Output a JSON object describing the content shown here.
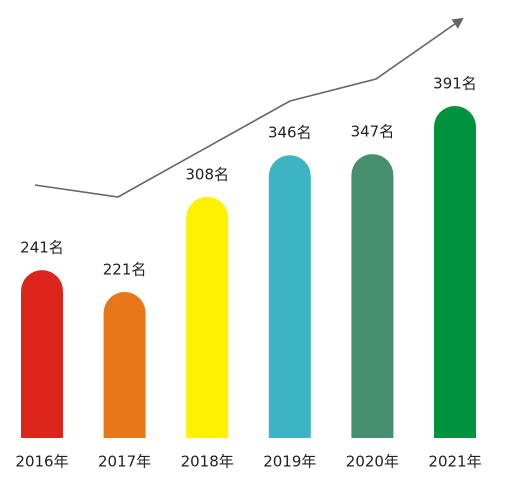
{
  "chart_data": {
    "type": "bar",
    "categories": [
      "2016年",
      "2017年",
      "2018年",
      "2019年",
      "2020年",
      "2021年"
    ],
    "values": [
      241,
      221,
      308,
      346,
      347,
      391
    ],
    "value_labels": [
      "241名",
      "221名",
      "308名",
      "346名",
      "347名",
      "391名"
    ],
    "colors": [
      "#dc251c",
      "#e8771a",
      "#fff200",
      "#3cb4c4",
      "#458f6e",
      "#01923e"
    ]
  }
}
